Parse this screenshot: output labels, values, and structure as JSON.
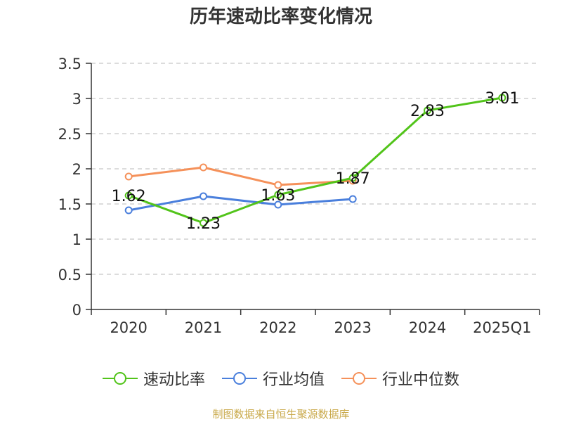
{
  "chart_data": {
    "type": "line",
    "title": "历年速动比率变化情况",
    "categories": [
      "2020",
      "2021",
      "2022",
      "2023",
      "2024",
      "2025Q1"
    ],
    "ylim": [
      0,
      3.5
    ],
    "yticks": [
      "0",
      "0.5",
      "1",
      "1.5",
      "2",
      "2.5",
      "3",
      "3.5"
    ],
    "ytick_values": [
      0,
      0.5,
      1,
      1.5,
      2,
      2.5,
      3,
      3.5
    ],
    "grid": true,
    "series": [
      {
        "name": "速动比率",
        "color": "#52c41a",
        "values": [
          1.62,
          1.23,
          1.63,
          1.87,
          2.83,
          3.01
        ],
        "labels": [
          "1.62",
          "1.23",
          "1.63",
          "1.87",
          "2.83",
          "3.01"
        ]
      },
      {
        "name": "行业均值",
        "color": "#4a7fdc",
        "values": [
          1.41,
          1.61,
          1.49,
          1.57,
          null,
          null
        ]
      },
      {
        "name": "行业中位数",
        "color": "#f5915a",
        "values": [
          1.89,
          2.02,
          1.77,
          1.83,
          null,
          null
        ]
      }
    ],
    "legend_position": "bottom-center"
  },
  "source": "制图数据来自恒生聚源数据库"
}
